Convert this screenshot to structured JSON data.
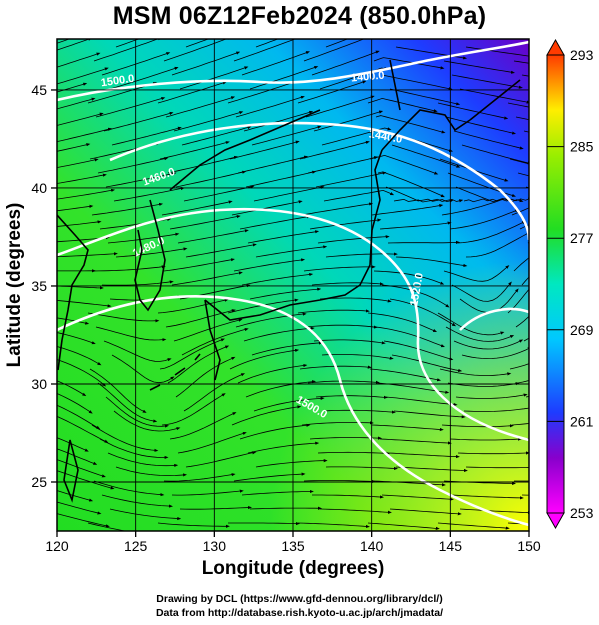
{
  "title": "MSM 06Z12Feb2024 (850.0hPa)",
  "credits": {
    "line1": "Drawing by DCL (https://www.gfd-dennou.org/library/dcl/)",
    "line2": "Data from http://database.rish.kyoto-u.ac.jp/arch/jmadata/"
  },
  "map": {
    "x_axis": {
      "label": "Longitude (degrees)",
      "range": [
        120,
        150
      ],
      "ticks": [
        "120",
        "125",
        "130",
        "135",
        "140",
        "145",
        "150"
      ]
    },
    "y_axis": {
      "label": "Latitude  (degrees)",
      "range": [
        22.5,
        47.6
      ],
      "ticks": [
        "25",
        "30",
        "35",
        "40",
        "45"
      ]
    },
    "colorbar": {
      "range": [
        253,
        293
      ],
      "labels": [
        "293",
        "285",
        "277",
        "269",
        "261",
        "253"
      ]
    },
    "contour_labels": [
      "1500.0",
      "1400.0",
      "1440.0",
      "1480.0",
      "1520.0",
      "1500.0",
      "1460.0"
    ],
    "colors": {
      "warm": "#ffff00",
      "green": "#22dd22",
      "cyan": "#00e5e5",
      "blue": "#1e3cff",
      "magenta": "#cc00cc",
      "coast": "#000000",
      "contour": "#ffffff"
    }
  }
}
